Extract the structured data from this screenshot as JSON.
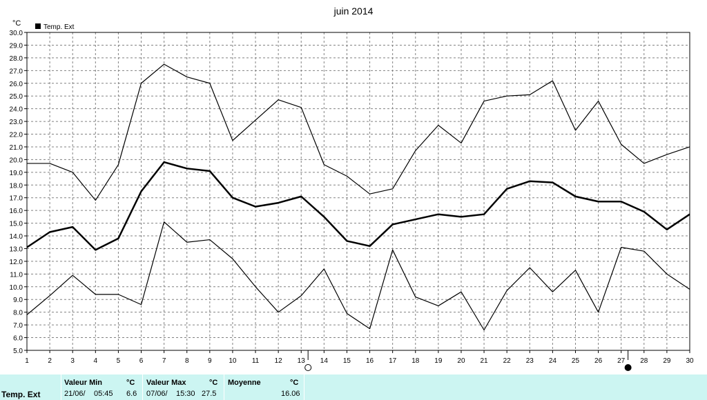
{
  "chart_data": {
    "type": "line",
    "title": "juin 2014",
    "ylabel": "°C",
    "legend": "Temp. Ext",
    "legend_placement": "top-left",
    "grid": true,
    "ylim": [
      5.0,
      30.0
    ],
    "y_ticks": [
      "5.0",
      "6.0",
      "7.0",
      "8.0",
      "9.0",
      "10.0",
      "11.0",
      "12.0",
      "13.0",
      "14.0",
      "15.0",
      "16.0",
      "17.0",
      "18.0",
      "19.0",
      "20.0",
      "21.0",
      "22.0",
      "23.0",
      "24.0",
      "25.0",
      "26.0",
      "27.0",
      "28.0",
      "29.0",
      "30.0"
    ],
    "x": [
      1,
      2,
      3,
      4,
      5,
      6,
      7,
      8,
      9,
      10,
      11,
      12,
      13,
      14,
      15,
      16,
      17,
      18,
      19,
      20,
      21,
      22,
      23,
      24,
      25,
      26,
      27,
      28,
      29,
      30
    ],
    "x_ticks": [
      "1",
      "2",
      "3",
      "4",
      "5",
      "6",
      "7",
      "8",
      "9",
      "10",
      "11",
      "12",
      "13",
      "14",
      "15",
      "16",
      "17",
      "18",
      "19",
      "20",
      "21",
      "22",
      "23",
      "24",
      "25",
      "26",
      "27",
      "28",
      "29",
      "30"
    ],
    "series": [
      {
        "role": "max",
        "values": [
          19.7,
          19.7,
          19.0,
          16.8,
          19.6,
          26.0,
          27.5,
          26.5,
          26.0,
          21.5,
          23.1,
          24.7,
          24.1,
          19.6,
          18.7,
          17.3,
          17.7,
          20.7,
          22.7,
          21.3,
          24.6,
          25.0,
          25.1,
          26.2,
          22.3,
          24.6,
          21.2,
          19.7,
          20.4,
          21.0
        ]
      },
      {
        "role": "mean",
        "values": [
          13.1,
          14.3,
          14.7,
          12.9,
          13.8,
          17.5,
          19.8,
          19.3,
          19.1,
          17.0,
          16.3,
          16.6,
          17.1,
          15.5,
          13.6,
          13.2,
          14.9,
          15.3,
          15.7,
          15.5,
          15.7,
          17.7,
          18.3,
          18.2,
          17.1,
          16.7,
          16.7,
          15.9,
          14.5,
          15.7
        ]
      },
      {
        "role": "min",
        "values": [
          7.8,
          9.3,
          10.9,
          9.4,
          9.4,
          8.6,
          15.1,
          13.5,
          13.7,
          12.2,
          10.0,
          8.0,
          9.3,
          11.4,
          7.9,
          6.7,
          12.9,
          9.2,
          8.5,
          9.6,
          6.6,
          9.7,
          11.5,
          9.6,
          11.3,
          8.0,
          13.1,
          12.8,
          11.0,
          9.8
        ]
      }
    ],
    "moon_phases": [
      {
        "day": 13,
        "phase": "full-moon-icon"
      },
      {
        "day": 27,
        "phase": "new-moon-icon"
      }
    ]
  },
  "summary": {
    "row_label": "Temp. Ext",
    "min_header": "Valeur Min",
    "min_unit": "°C",
    "min_date": "21/06/",
    "min_time": "05:45",
    "min_value": "6.6",
    "max_header": "Valeur Max",
    "max_unit": "°C",
    "max_date": "07/06/",
    "max_time": "15:30",
    "max_value": "27.5",
    "avg_header": "Moyenne",
    "avg_unit": "°C",
    "avg_value": "16.06"
  },
  "colors": {
    "summary_bg": "#ccf5f2",
    "line": "#000000",
    "grid": "#808080"
  }
}
